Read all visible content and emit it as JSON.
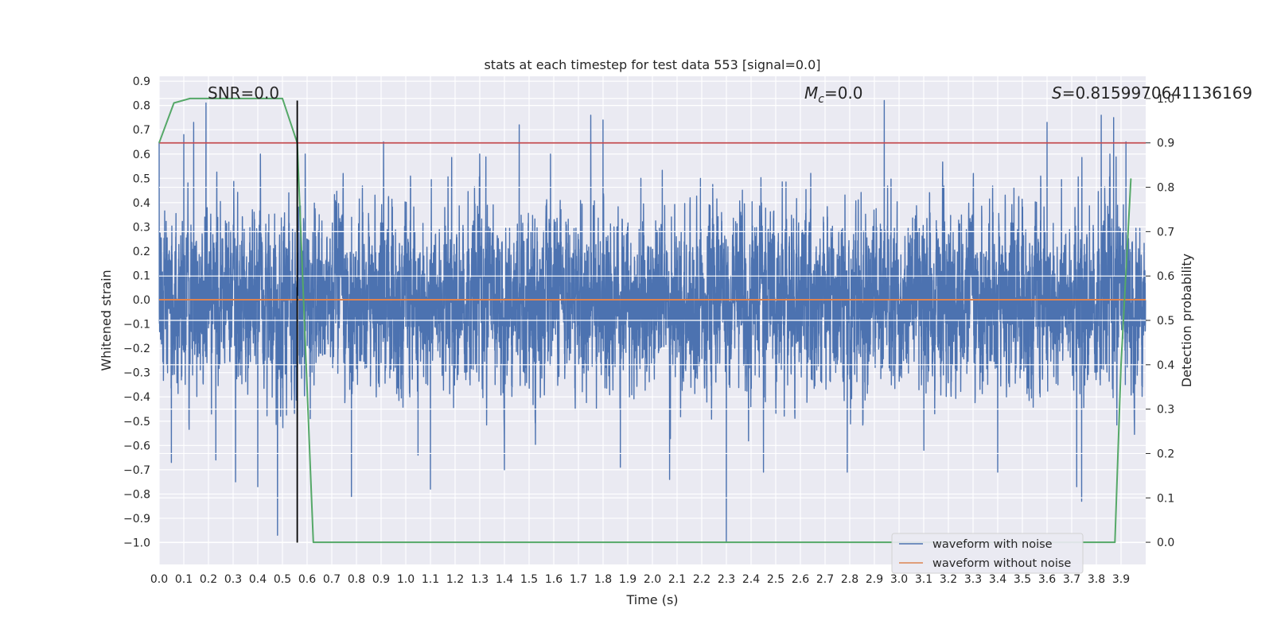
{
  "chart_data": {
    "type": "line",
    "title": "stats at each timestep for test data 553 [signal=0.0]",
    "xlabel": "Time (s)",
    "ylabel": "Whitened strain",
    "y2label": "Detection probability",
    "xlim": [
      0.0,
      4.0
    ],
    "ylim": [
      -1.09,
      0.92
    ],
    "y2lim": [
      -0.05,
      1.05
    ],
    "xticks": [
      "0.0",
      "0.1",
      "0.2",
      "0.3",
      "0.4",
      "0.5",
      "0.6",
      "0.7",
      "0.8",
      "0.9",
      "1.0",
      "1.1",
      "1.2",
      "1.3",
      "1.4",
      "1.5",
      "1.6",
      "1.7",
      "1.8",
      "1.9",
      "2.0",
      "2.1",
      "2.2",
      "2.3",
      "2.4",
      "2.5",
      "2.6",
      "2.7",
      "2.8",
      "2.9",
      "3.0",
      "3.1",
      "3.2",
      "3.3",
      "3.4",
      "3.5",
      "3.6",
      "3.7",
      "3.8",
      "3.9"
    ],
    "yticks": [
      "0.9",
      "0.8",
      "0.7",
      "0.6",
      "0.5",
      "0.4",
      "0.3",
      "0.2",
      "0.1",
      "0.0",
      "−0.1",
      "−0.2",
      "−0.3",
      "−0.4",
      "−0.5",
      "−0.6",
      "−0.7",
      "−0.8",
      "−0.9",
      "−1.0"
    ],
    "y2ticks": [
      "1.0",
      "0.9",
      "0.8",
      "0.7",
      "0.6",
      "0.5",
      "0.4",
      "0.3",
      "0.2",
      "0.1",
      "0.0"
    ],
    "grid": true,
    "legend_position": "bottom-right",
    "annotations": {
      "snr": "SNR=0.0",
      "mc_symbol": "M",
      "mc_sub": "c",
      "mc_value": "=0.0",
      "s_symbol": "S",
      "s_value": "=0.8159970641136169"
    },
    "series": [
      {
        "name": "waveform with noise",
        "color": "#4c72b0",
        "axis": "left",
        "style": "noise",
        "sample_rate_hz": 2048,
        "typical_amplitude": 0.2,
        "peaks": [
          {
            "x": 0.19,
            "y": 0.81
          },
          {
            "x": 0.14,
            "y": 0.73
          },
          {
            "x": 0.0,
            "y": 0.65
          },
          {
            "x": 0.91,
            "y": 0.65
          },
          {
            "x": 1.46,
            "y": 0.72
          },
          {
            "x": 1.4,
            "y": 0.64
          },
          {
            "x": 1.75,
            "y": 0.76
          },
          {
            "x": 1.8,
            "y": 0.74
          },
          {
            "x": 2.94,
            "y": 0.82
          },
          {
            "x": 3.6,
            "y": 0.73
          },
          {
            "x": 3.82,
            "y": 0.76
          },
          {
            "x": 3.87,
            "y": 0.75
          },
          {
            "x": 3.92,
            "y": 0.65
          },
          {
            "x": 0.1,
            "y": 0.68
          },
          {
            "x": 0.05,
            "y": -0.67
          },
          {
            "x": 0.31,
            "y": -0.75
          },
          {
            "x": 0.4,
            "y": -0.77
          },
          {
            "x": 0.48,
            "y": -0.97
          },
          {
            "x": 0.78,
            "y": -0.81
          },
          {
            "x": 1.1,
            "y": -0.78
          },
          {
            "x": 1.4,
            "y": -0.7
          },
          {
            "x": 1.87,
            "y": -0.69
          },
          {
            "x": 2.07,
            "y": -0.74
          },
          {
            "x": 2.3,
            "y": -1.0
          },
          {
            "x": 2.45,
            "y": -0.71
          },
          {
            "x": 2.79,
            "y": -0.71
          },
          {
            "x": 3.4,
            "y": -0.71
          },
          {
            "x": 3.74,
            "y": -0.83
          },
          {
            "x": 3.72,
            "y": -0.77
          },
          {
            "x": 0.23,
            "y": -0.66
          },
          {
            "x": 1.05,
            "y": -0.64
          }
        ]
      },
      {
        "name": "waveform without noise",
        "color": "#dd8452",
        "axis": "left",
        "x": [
          0.0,
          4.0
        ],
        "y": [
          0.0,
          0.0
        ]
      },
      {
        "color": "#55a868",
        "axis": "right",
        "x": [
          0.0,
          0.06,
          0.125,
          0.25,
          0.375,
          0.5,
          0.56,
          0.625,
          1.0,
          2.0,
          3.0,
          3.875,
          3.9,
          3.94
        ],
        "y": [
          0.9,
          0.99,
          1.0,
          1.0,
          1.0,
          1.0,
          0.9,
          0.0,
          0.0,
          0.0,
          0.0,
          0.0,
          0.4,
          0.82
        ]
      },
      {
        "color": "#c44e52",
        "axis": "right",
        "x": [
          0.0,
          4.0
        ],
        "y": [
          0.9,
          0.9
        ]
      }
    ],
    "vertical_line": {
      "x": 0.56,
      "y_range": [
        -1.0,
        0.82
      ],
      "color": "#000000"
    }
  }
}
